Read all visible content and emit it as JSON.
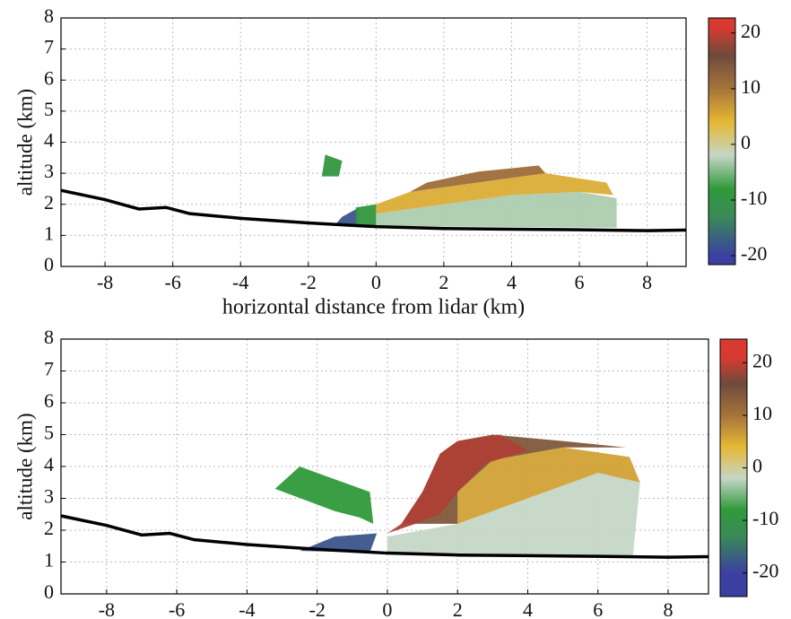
{
  "chart_data": [
    {
      "type": "field",
      "ylabel": "altitude (km)",
      "xlabel": "horizontal distance from lidar (km)",
      "xlim": [
        -9.3,
        9.15
      ],
      "ylim": [
        0,
        8
      ],
      "xticks": [
        -8,
        -6,
        -4,
        -2,
        0,
        2,
        4,
        6,
        8
      ],
      "yticks": [
        0,
        1,
        2,
        3,
        4,
        5,
        6,
        7,
        8
      ],
      "grid": true,
      "clim": [
        -21.6,
        22.7
      ],
      "cticks": [
        -20,
        -10,
        0,
        10,
        20
      ],
      "colormap": [
        {
          "value": -20,
          "color": "#3b40a0"
        },
        {
          "value": -13,
          "color": "#3a8a58"
        },
        {
          "value": -8,
          "color": "#2f9a3a"
        },
        {
          "value": -2,
          "color": "#c5d6c6"
        },
        {
          "value": 4,
          "color": "#e6b834"
        },
        {
          "value": 10,
          "color": "#a6743a"
        },
        {
          "value": 16,
          "color": "#6e4a3c"
        },
        {
          "value": 21,
          "color": "#d83a30"
        }
      ],
      "terrain": {
        "color": "#000000",
        "x": [
          -9.3,
          -8,
          -7,
          -6.2,
          -5.5,
          -4,
          -2,
          0,
          2,
          4,
          6,
          8,
          9.15
        ],
        "y": [
          2.45,
          2.15,
          1.85,
          1.9,
          1.7,
          1.55,
          1.4,
          1.28,
          1.22,
          1.2,
          1.18,
          1.15,
          1.17
        ]
      },
      "regions": [
        {
          "value": -3,
          "points": [
            [
              0,
              1.3
            ],
            [
              7.1,
              1.25
            ],
            [
              7.1,
              2.2
            ],
            [
              6,
              2.4
            ],
            [
              4,
              2.3
            ],
            [
              2,
              2.0
            ],
            [
              0,
              1.7
            ]
          ]
        },
        {
          "value": 5,
          "points": [
            [
              0,
              1.7
            ],
            [
              2,
              2.0
            ],
            [
              4,
              2.3
            ],
            [
              6,
              2.4
            ],
            [
              7,
              2.3
            ],
            [
              6.8,
              2.7
            ],
            [
              5,
              3.0
            ],
            [
              3,
              2.7
            ],
            [
              1,
              2.4
            ],
            [
              0,
              2.0
            ]
          ]
        },
        {
          "value": 11,
          "points": [
            [
              1,
              2.4
            ],
            [
              3,
              2.7
            ],
            [
              5,
              3.0
            ],
            [
              4.8,
              3.25
            ],
            [
              3,
              3.05
            ],
            [
              1.5,
              2.7
            ]
          ]
        },
        {
          "value": -18,
          "points": [
            [
              -1.2,
              1.35
            ],
            [
              -0.5,
              1.3
            ],
            [
              -0.5,
              1.9
            ],
            [
              -1,
              1.6
            ]
          ]
        },
        {
          "value": -9,
          "points": [
            [
              -0.6,
              1.3
            ],
            [
              0,
              1.3
            ],
            [
              0,
              2.0
            ],
            [
              -0.6,
              1.9
            ]
          ]
        },
        {
          "value": -9,
          "points": [
            [
              -1.6,
              2.9
            ],
            [
              -1.1,
              2.9
            ],
            [
              -1.0,
              3.4
            ],
            [
              -1.5,
              3.6
            ]
          ]
        }
      ]
    },
    {
      "type": "field",
      "ylabel": "altitude (km)",
      "xlim": [
        -9.3,
        9.15
      ],
      "ylim": [
        0,
        8
      ],
      "xticks": [
        -8,
        -6,
        -4,
        -2,
        0,
        2,
        4,
        6,
        8
      ],
      "yticks": [
        0,
        1,
        2,
        3,
        4,
        5,
        6,
        7,
        8
      ],
      "grid": true,
      "clim": [
        -24.5,
        24.5
      ],
      "cticks": [
        -20,
        -10,
        0,
        10,
        20
      ],
      "colormap": [
        {
          "value": -20,
          "color": "#3b40a0"
        },
        {
          "value": -13,
          "color": "#3a8a58"
        },
        {
          "value": -8,
          "color": "#2f9a3a"
        },
        {
          "value": -2,
          "color": "#c5d6c6"
        },
        {
          "value": 4,
          "color": "#e6b834"
        },
        {
          "value": 10,
          "color": "#a6743a"
        },
        {
          "value": 16,
          "color": "#6e4a3c"
        },
        {
          "value": 21,
          "color": "#d83a30"
        }
      ],
      "terrain": {
        "color": "#000000",
        "x": [
          -9.3,
          -8,
          -7,
          -6.2,
          -5.5,
          -4,
          -2,
          0,
          2,
          4,
          6,
          8,
          9.15
        ],
        "y": [
          2.45,
          2.15,
          1.85,
          1.9,
          1.7,
          1.55,
          1.4,
          1.28,
          1.22,
          1.2,
          1.18,
          1.15,
          1.17
        ]
      },
      "regions": [
        {
          "value": -8,
          "points": [
            [
              -3.2,
              3.3
            ],
            [
              -1.5,
              2.6
            ],
            [
              -0.8,
              2.4
            ],
            [
              -0.4,
              2.2
            ],
            [
              -0.5,
              3.2
            ],
            [
              -1.5,
              3.6
            ],
            [
              -2.5,
              4.0
            ]
          ]
        },
        {
          "value": -18,
          "points": [
            [
              -2.5,
              1.35
            ],
            [
              -0.5,
              1.3
            ],
            [
              -0.3,
              1.9
            ],
            [
              -1.5,
              1.8
            ]
          ]
        },
        {
          "value": -2,
          "points": [
            [
              0,
              1.28
            ],
            [
              7,
              1.2
            ],
            [
              7.2,
              3.5
            ],
            [
              6,
              3.8
            ],
            [
              4,
              3.0
            ],
            [
              2,
              2.2
            ],
            [
              0,
              1.8
            ]
          ]
        },
        {
          "value": 6,
          "points": [
            [
              2,
              2.2
            ],
            [
              4,
              3.0
            ],
            [
              6,
              3.8
            ],
            [
              7.2,
              3.5
            ],
            [
              6.9,
              4.3
            ],
            [
              5,
              4.6
            ],
            [
              3,
              4.2
            ],
            [
              2,
              3.2
            ]
          ]
        },
        {
          "value": 14,
          "points": [
            [
              0.4,
              2.2
            ],
            [
              2,
              2.2
            ],
            [
              2,
              3.2
            ],
            [
              3,
              4.2
            ],
            [
              5,
              4.6
            ],
            [
              6.8,
              4.6
            ],
            [
              5,
              4.8
            ],
            [
              3,
              5.0
            ],
            [
              2,
              4.8
            ],
            [
              1.5,
              4.4
            ],
            [
              1,
              3.2
            ]
          ]
        },
        {
          "value": 19,
          "points": [
            [
              0,
              1.9
            ],
            [
              0.4,
              2.2
            ],
            [
              1,
              3.2
            ],
            [
              1.5,
              4.4
            ],
            [
              2,
              4.8
            ],
            [
              3.2,
              5.0
            ],
            [
              4,
              4.5
            ],
            [
              2.8,
              4.1
            ],
            [
              2,
              3.2
            ],
            [
              1.5,
              2.5
            ],
            [
              0.8,
              2.2
            ]
          ]
        }
      ]
    }
  ]
}
